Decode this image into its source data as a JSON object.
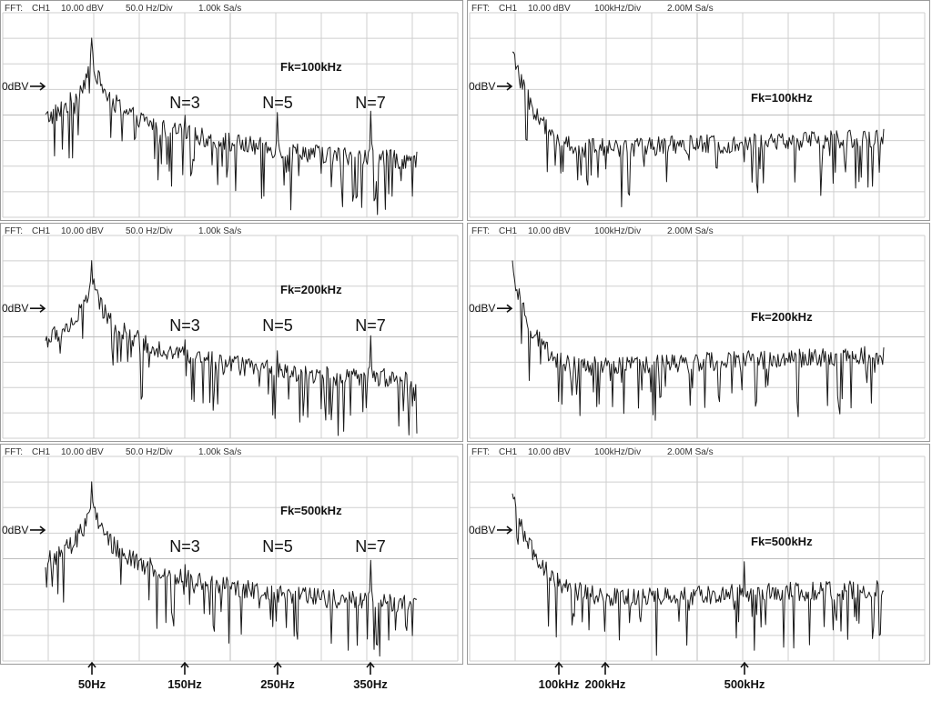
{
  "chart_data": [
    {
      "type": "line",
      "header": {
        "label": "FFT:",
        "channel": "CH1",
        "scale": "10.00 dBV",
        "span": "50.0 Hz/Div",
        "rate": "1.00k Sa/s"
      },
      "fk_label": "Fk=100kHz",
      "ref_label": "0dBV",
      "ref_level": -35,
      "ylim": [
        -130,
        25
      ],
      "xlim": [
        0,
        400
      ],
      "series": [
        {
          "peaks": [
            {
              "x": 50,
              "y": 0
            },
            {
              "x": 150,
              "y": -56
            },
            {
              "x": 250,
              "y": -54
            },
            {
              "x": 350,
              "y": -53
            }
          ],
          "noise_floor": -92
        }
      ],
      "annotations": [
        {
          "text": "N=3",
          "x": 150
        },
        {
          "text": "N=5",
          "x": 250
        },
        {
          "text": "N=7",
          "x": 350
        }
      ]
    },
    {
      "type": "line",
      "header": {
        "label": "FFT:",
        "channel": "CH1",
        "scale": "10.00 dBV",
        "span": "100kHz/Div",
        "rate": "2.00M Sa/s"
      },
      "fk_label": "Fk=100kHz",
      "ref_label": "0dBV",
      "ref_level": -35,
      "ylim": [
        -130,
        25
      ],
      "xlim": [
        0,
        800
      ],
      "series": [
        {
          "peaks": [
            {
              "x": 0,
              "y": -10
            }
          ],
          "noise_floor": -88
        }
      ],
      "annotations": []
    },
    {
      "type": "line",
      "header": {
        "label": "FFT:",
        "channel": "CH1",
        "scale": "10.00 dBV",
        "span": "50.0 Hz/Div",
        "rate": "1.00k Sa/s"
      },
      "fk_label": "Fk=200kHz",
      "ref_label": "0dBV",
      "ref_level": -35,
      "ylim": [
        -130,
        25
      ],
      "xlim": [
        0,
        400
      ],
      "series": [
        {
          "peaks": [
            {
              "x": 50,
              "y": 0
            },
            {
              "x": 150,
              "y": -58
            },
            {
              "x": 250,
              "y": -66
            },
            {
              "x": 350,
              "y": -55
            }
          ],
          "noise_floor": -90
        }
      ],
      "annotations": [
        {
          "text": "N=3",
          "x": 150
        },
        {
          "text": "N=5",
          "x": 250
        },
        {
          "text": "N=7",
          "x": 350
        }
      ]
    },
    {
      "type": "line",
      "header": {
        "label": "FFT:",
        "channel": "CH1",
        "scale": "10.00 dBV",
        "span": "100kHz/Div",
        "rate": "2.00M Sa/s"
      },
      "fk_label": "Fk=200kHz",
      "ref_label": "0dBV",
      "ref_level": -35,
      "ylim": [
        -130,
        25
      ],
      "xlim": [
        0,
        800
      ],
      "series": [
        {
          "peaks": [
            {
              "x": 0,
              "y": 0
            }
          ],
          "noise_floor": -85
        }
      ],
      "annotations": []
    },
    {
      "type": "line",
      "header": {
        "label": "FFT:",
        "channel": "CH1",
        "scale": "10.00 dBV",
        "span": "50.0 Hz/Div",
        "rate": "1.00k Sa/s"
      },
      "fk_label": "Fk=500kHz",
      "ref_label": "0dBV",
      "ref_level": -35,
      "ylim": [
        -130,
        25
      ],
      "xlim": [
        0,
        400
      ],
      "series": [
        {
          "peaks": [
            {
              "x": 50,
              "y": 0
            },
            {
              "x": 150,
              "y": -60
            },
            {
              "x": 250,
              "y": -78
            },
            {
              "x": 350,
              "y": -57
            }
          ],
          "noise_floor": -92
        }
      ],
      "annotations": [
        {
          "text": "N=3",
          "x": 150
        },
        {
          "text": "N=5",
          "x": 250
        },
        {
          "text": "N=7",
          "x": 350
        }
      ]
    },
    {
      "type": "line",
      "header": {
        "label": "FFT:",
        "channel": "CH1",
        "scale": "10.00 dBV",
        "span": "100kHz/Div",
        "rate": "2.00M Sa/s"
      },
      "fk_label": "Fk=500kHz",
      "ref_label": "0dBV",
      "ref_level": -35,
      "ylim": [
        -130,
        25
      ],
      "xlim": [
        0,
        800
      ],
      "series": [
        {
          "peaks": [
            {
              "x": 0,
              "y": -10
            },
            {
              "x": 500,
              "y": -58
            }
          ],
          "noise_floor": -93
        }
      ],
      "annotations": []
    }
  ],
  "frequency_markers": {
    "left": [
      {
        "text": "50Hz",
        "x": 50
      },
      {
        "text": "150Hz",
        "x": 150
      },
      {
        "text": "250Hz",
        "x": 250
      },
      {
        "text": "350Hz",
        "x": 350
      }
    ],
    "right": [
      {
        "text": "100kHz",
        "x": 100
      },
      {
        "text": "200kHz",
        "x": 200
      },
      {
        "text": "500kHz",
        "x": 500
      }
    ]
  }
}
